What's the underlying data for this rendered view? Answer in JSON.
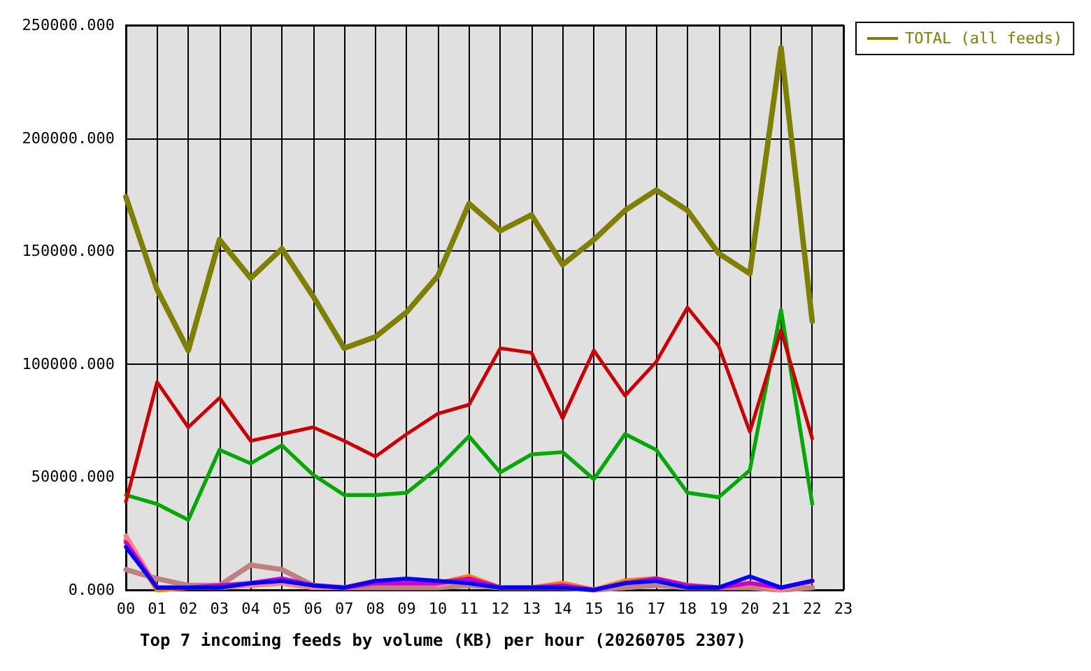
{
  "chart_data": {
    "type": "line",
    "xlabel": "Top 7 incoming feeds by volume (KB) per hour (20260705 2307)",
    "categories": [
      "00",
      "01",
      "02",
      "03",
      "04",
      "05",
      "06",
      "07",
      "08",
      "09",
      "10",
      "11",
      "12",
      "13",
      "14",
      "15",
      "16",
      "17",
      "18",
      "19",
      "20",
      "21",
      "22",
      "23"
    ],
    "ylim": [
      0,
      250000
    ],
    "yticks": [
      {
        "value": 0,
        "label": "0.000"
      },
      {
        "value": 50000,
        "label": "50000.000"
      },
      {
        "value": 100000,
        "label": "100000.000"
      },
      {
        "value": 150000,
        "label": "150000.000"
      },
      {
        "value": 200000,
        "label": "200000.000"
      },
      {
        "value": 250000,
        "label": "250000.000"
      }
    ],
    "grid": true,
    "legend": "top right",
    "marker": "none",
    "line_style": "solid",
    "series": [
      {
        "color": "#cc0000",
        "values": [
          39000,
          92000,
          72000,
          85000,
          66000,
          69000,
          72000,
          66000,
          59000,
          69000,
          78000,
          82000,
          107000,
          105000,
          76000,
          106000,
          86000,
          101000,
          125000,
          108000,
          70000,
          115000,
          67000,
          null
        ]
      },
      {
        "color": "#00aa00",
        "values": [
          42000,
          38000,
          31000,
          62000,
          56000,
          64000,
          51000,
          42000,
          42000,
          43000,
          54000,
          68000,
          52000,
          60000,
          61000,
          49000,
          69000,
          62000,
          43000,
          41000,
          53000,
          124000,
          38000,
          null
        ]
      },
      {
        "color": "#0000ff",
        "values": [
          19000,
          1000,
          1000,
          1000,
          3000,
          4000,
          2000,
          1000,
          4000,
          5000,
          4000,
          3000,
          1000,
          1000,
          1000,
          0,
          3000,
          4000,
          1000,
          1000,
          6000,
          1000,
          4000,
          null
        ]
      },
      {
        "color": "#cc00cc",
        "values": [
          21000,
          1000,
          1000,
          2000,
          3000,
          5000,
          2000,
          1000,
          3000,
          3000,
          3000,
          5000,
          1000,
          1000,
          2000,
          0,
          3000,
          5000,
          2000,
          1000,
          3000,
          1000,
          4000,
          null
        ]
      },
      {
        "color": "#ff8080",
        "values": [
          24000,
          1000,
          1000,
          1000,
          2000,
          3000,
          1000,
          1000,
          3000,
          null,
          2000,
          5000,
          1000,
          1000,
          2000,
          0,
          3000,
          4000,
          2000,
          1000,
          3000,
          0,
          4000,
          null
        ]
      },
      {
        "color": "#ff8000",
        "values": [
          22000,
          0,
          1000,
          1000,
          2000,
          3000,
          1000,
          1000,
          4000,
          null,
          3000,
          6000,
          1000,
          1000,
          3000,
          0,
          4000,
          5000,
          2000,
          1000,
          3000,
          0,
          4000,
          null
        ]
      },
      {
        "color": "#c08080",
        "values": [
          9000,
          5000,
          2000,
          2000,
          11000,
          9000,
          2000,
          1000,
          1000,
          1000,
          1000,
          2000,
          1000,
          1000,
          1000,
          0,
          1000,
          2000,
          1000,
          1000,
          1000,
          0,
          1000,
          null
        ]
      },
      {
        "name": "TOTAL (all feeds)",
        "color": "#808000",
        "values": [
          174000,
          133000,
          106000,
          155000,
          138000,
          151000,
          130000,
          107000,
          112000,
          123000,
          139000,
          171000,
          159000,
          166000,
          144000,
          155000,
          168000,
          177000,
          168000,
          149000,
          140000,
          240000,
          119000,
          null
        ]
      }
    ]
  }
}
